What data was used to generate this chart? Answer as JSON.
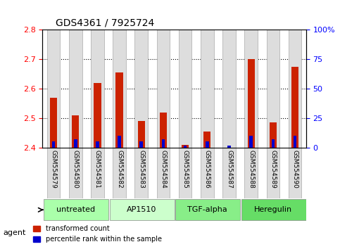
{
  "title": "GDS4361 / 7925724",
  "samples": [
    "GSM554579",
    "GSM554580",
    "GSM554581",
    "GSM554582",
    "GSM554583",
    "GSM554584",
    "GSM554585",
    "GSM554586",
    "GSM554587",
    "GSM554588",
    "GSM554589",
    "GSM554590"
  ],
  "red_values": [
    2.57,
    2.51,
    2.62,
    2.655,
    2.49,
    2.52,
    2.41,
    2.455,
    2.4,
    2.7,
    2.485,
    2.675
  ],
  "blue_values": [
    2,
    3,
    2,
    4,
    2,
    3,
    1,
    2,
    1,
    4,
    3,
    4
  ],
  "blue_percentile": [
    5,
    7,
    5,
    10,
    5,
    7,
    2,
    5,
    2,
    10,
    7,
    10
  ],
  "ymin": 2.4,
  "ymax": 2.8,
  "yticks": [
    2.4,
    2.5,
    2.6,
    2.7,
    2.8
  ],
  "right_yticks": [
    0,
    25,
    50,
    75,
    100
  ],
  "agent_groups": [
    {
      "label": "untreated",
      "start": 0,
      "end": 3,
      "color": "#aaffaa"
    },
    {
      "label": "AP1510",
      "start": 3,
      "end": 6,
      "color": "#ccffcc"
    },
    {
      "label": "TGF-alpha",
      "start": 6,
      "end": 9,
      "color": "#88ee88"
    },
    {
      "label": "Heregulin",
      "start": 9,
      "end": 12,
      "color": "#66dd66"
    }
  ],
  "red_color": "#cc2200",
  "blue_color": "#0000cc",
  "bar_bg": "#dddddd",
  "agent_label": "agent",
  "legend_red": "transformed count",
  "legend_blue": "percentile rank within the sample",
  "bar_width": 0.6
}
